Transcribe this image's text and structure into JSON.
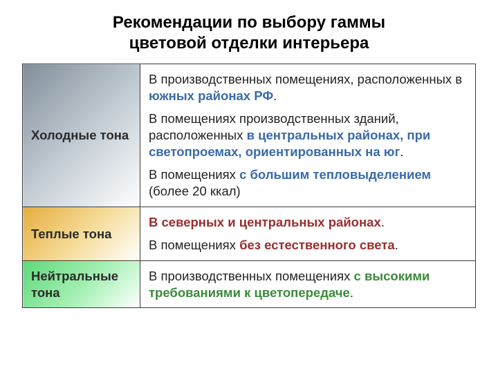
{
  "title_line1": "Рекомендации по выбору гаммы",
  "title_line2": "цветовой отделки интерьера",
  "table": {
    "rows": [
      {
        "label": "Холодные тона",
        "gradient": "gradient-cold",
        "highlight_class": "hl-blue",
        "paragraphs": [
          {
            "pre": "В производственных помещениях, расположенных в ",
            "hl": "южных районах РФ",
            "post": "."
          },
          {
            "pre": "В помещениях производственных зданий, расположенных ",
            "hl": "в центральных районах, при светопроемах, ориентированных на юг",
            "post": "."
          },
          {
            "pre": "В помещениях ",
            "hl": "с большим тепловыделением",
            "post": " (более 20 ккал)"
          }
        ]
      },
      {
        "label": "Теплые тона",
        "gradient": "gradient-warm",
        "highlight_class": "hl-red",
        "paragraphs": [
          {
            "pre": "",
            "hl": "В северных и центральных районах",
            "post": "."
          },
          {
            "pre": "В помещениях ",
            "hl": "без естественного света",
            "post": "."
          }
        ]
      },
      {
        "label": "Нейтральные тона",
        "gradient": "gradient-neutral",
        "highlight_class": "hl-green",
        "paragraphs": [
          {
            "pre": "В производственных помещениях ",
            "hl": "с высокими требованиями к цветопередаче",
            "post": "."
          }
        ]
      }
    ]
  },
  "colors": {
    "highlight_blue": "#3a6ba8",
    "highlight_red": "#9a2e2e",
    "highlight_green": "#3b8a3b",
    "border": "#3a3a3a",
    "background": "#ffffff"
  }
}
